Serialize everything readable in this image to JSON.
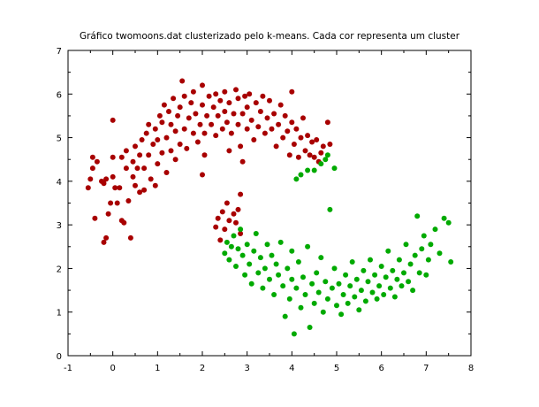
{
  "chart_data": {
    "type": "scatter",
    "title": "Gráfico twomoons.dat clusterizado pelo k-means. Cada cor representa um cluster",
    "xlabel": "",
    "ylabel": "",
    "xlim": [
      -1,
      8
    ],
    "ylim": [
      0,
      7
    ],
    "x_ticks": [
      "-1",
      "0",
      "1",
      "2",
      "3",
      "4",
      "5",
      "6",
      "7",
      "8"
    ],
    "y_ticks": [
      "0",
      "1",
      "2",
      "3",
      "4",
      "5",
      "6",
      "7"
    ],
    "grid": false,
    "series": [
      {
        "color": "#a80000",
        "points": [
          [
            -0.55,
            3.85
          ],
          [
            -0.5,
            4.05
          ],
          [
            -0.45,
            4.3
          ],
          [
            -0.45,
            4.55
          ],
          [
            -0.4,
            3.15
          ],
          [
            -0.35,
            4.45
          ],
          [
            -0.25,
            4.0
          ],
          [
            -0.2,
            3.95
          ],
          [
            -0.15,
            4.05
          ],
          [
            -0.2,
            2.6
          ],
          [
            -0.15,
            2.7
          ],
          [
            -0.1,
            3.25
          ],
          [
            -0.05,
            3.5
          ],
          [
            0.0,
            4.1
          ],
          [
            0.0,
            4.55
          ],
          [
            0.0,
            5.4
          ],
          [
            0.05,
            3.85
          ],
          [
            0.1,
            3.5
          ],
          [
            0.15,
            3.85
          ],
          [
            0.2,
            3.1
          ],
          [
            0.2,
            4.55
          ],
          [
            0.25,
            3.05
          ],
          [
            0.3,
            4.3
          ],
          [
            0.3,
            4.7
          ],
          [
            0.35,
            3.55
          ],
          [
            0.4,
            2.7
          ],
          [
            0.45,
            4.1
          ],
          [
            0.45,
            4.45
          ],
          [
            0.5,
            3.9
          ],
          [
            0.5,
            4.8
          ],
          [
            0.55,
            4.3
          ],
          [
            0.6,
            3.75
          ],
          [
            0.6,
            4.6
          ],
          [
            0.65,
            4.95
          ],
          [
            0.7,
            3.8
          ],
          [
            0.7,
            4.3
          ],
          [
            0.75,
            5.1
          ],
          [
            0.8,
            4.6
          ],
          [
            0.8,
            5.3
          ],
          [
            0.85,
            4.05
          ],
          [
            0.9,
            4.85
          ],
          [
            0.95,
            3.9
          ],
          [
            0.95,
            5.2
          ],
          [
            1.0,
            4.4
          ],
          [
            1.0,
            4.95
          ],
          [
            1.05,
            5.5
          ],
          [
            1.1,
            4.65
          ],
          [
            1.1,
            5.35
          ],
          [
            1.15,
            5.75
          ],
          [
            1.2,
            4.2
          ],
          [
            1.2,
            5.0
          ],
          [
            1.25,
            5.6
          ],
          [
            1.3,
            4.7
          ],
          [
            1.3,
            5.3
          ],
          [
            1.35,
            5.9
          ],
          [
            1.4,
            4.5
          ],
          [
            1.4,
            5.15
          ],
          [
            1.45,
            5.5
          ],
          [
            1.5,
            4.85
          ],
          [
            1.5,
            5.7
          ],
          [
            1.55,
            6.3
          ],
          [
            1.6,
            5.2
          ],
          [
            1.6,
            5.95
          ],
          [
            1.65,
            4.75
          ],
          [
            1.7,
            5.45
          ],
          [
            1.75,
            5.8
          ],
          [
            1.8,
            5.1
          ],
          [
            1.8,
            6.05
          ],
          [
            1.85,
            5.55
          ],
          [
            1.9,
            4.9
          ],
          [
            1.95,
            5.3
          ],
          [
            2.0,
            5.75
          ],
          [
            2.0,
            6.2
          ],
          [
            2.05,
            5.1
          ],
          [
            2.1,
            5.5
          ],
          [
            2.15,
            5.95
          ],
          [
            2.2,
            5.3
          ],
          [
            2.25,
            5.7
          ],
          [
            2.3,
            6.0
          ],
          [
            2.3,
            5.05
          ],
          [
            2.35,
            5.5
          ],
          [
            2.4,
            5.85
          ],
          [
            2.45,
            5.2
          ],
          [
            2.5,
            5.6
          ],
          [
            2.5,
            6.05
          ],
          [
            2.55,
            5.35
          ],
          [
            2.6,
            5.8
          ],
          [
            2.65,
            5.1
          ],
          [
            2.7,
            5.55
          ],
          [
            2.75,
            6.1
          ],
          [
            2.8,
            5.3
          ],
          [
            2.8,
            5.9
          ],
          [
            2.85,
            4.8
          ],
          [
            2.9,
            5.55
          ],
          [
            2.95,
            5.95
          ],
          [
            3.0,
            5.2
          ],
          [
            3.0,
            5.7
          ],
          [
            3.05,
            6.0
          ],
          [
            3.1,
            5.4
          ],
          [
            3.15,
            4.95
          ],
          [
            3.2,
            5.8
          ],
          [
            3.25,
            5.25
          ],
          [
            3.3,
            5.6
          ],
          [
            3.35,
            5.95
          ],
          [
            3.4,
            5.1
          ],
          [
            3.45,
            5.45
          ],
          [
            3.5,
            5.85
          ],
          [
            3.55,
            5.2
          ],
          [
            3.6,
            5.55
          ],
          [
            3.65,
            4.8
          ],
          [
            3.7,
            5.3
          ],
          [
            3.75,
            5.75
          ],
          [
            3.8,
            5.0
          ],
          [
            3.85,
            5.5
          ],
          [
            3.9,
            5.15
          ],
          [
            3.95,
            4.6
          ],
          [
            4.0,
            5.35
          ],
          [
            4.0,
            6.05
          ],
          [
            4.05,
            4.85
          ],
          [
            4.1,
            5.2
          ],
          [
            4.15,
            4.55
          ],
          [
            4.2,
            5.0
          ],
          [
            4.25,
            5.45
          ],
          [
            4.3,
            4.7
          ],
          [
            4.35,
            5.05
          ],
          [
            4.4,
            4.6
          ],
          [
            4.45,
            4.9
          ],
          [
            4.5,
            4.55
          ],
          [
            4.55,
            4.95
          ],
          [
            4.6,
            4.45
          ],
          [
            4.65,
            4.65
          ],
          [
            4.7,
            4.8
          ],
          [
            4.8,
            5.35
          ],
          [
            4.85,
            4.85
          ],
          [
            2.3,
            2.95
          ],
          [
            2.35,
            3.15
          ],
          [
            2.4,
            2.65
          ],
          [
            2.45,
            3.3
          ],
          [
            2.5,
            2.9
          ],
          [
            2.55,
            3.5
          ],
          [
            2.6,
            3.1
          ],
          [
            2.7,
            3.25
          ],
          [
            2.75,
            3.05
          ],
          [
            2.8,
            3.35
          ],
          [
            2.85,
            2.8
          ],
          [
            2.85,
            3.7
          ],
          [
            2.0,
            4.15
          ],
          [
            2.9,
            4.45
          ],
          [
            2.05,
            4.6
          ],
          [
            2.6,
            4.7
          ]
        ]
      },
      {
        "color": "#00aa00",
        "points": [
          [
            2.5,
            2.35
          ],
          [
            2.55,
            2.6
          ],
          [
            2.6,
            2.2
          ],
          [
            2.65,
            2.5
          ],
          [
            2.7,
            2.75
          ],
          [
            2.75,
            2.05
          ],
          [
            2.8,
            2.45
          ],
          [
            2.85,
            2.9
          ],
          [
            2.9,
            2.3
          ],
          [
            2.95,
            1.85
          ],
          [
            3.0,
            2.55
          ],
          [
            3.05,
            2.1
          ],
          [
            3.1,
            1.65
          ],
          [
            3.15,
            2.4
          ],
          [
            3.2,
            2.8
          ],
          [
            3.25,
            1.9
          ],
          [
            3.3,
            2.25
          ],
          [
            3.35,
            1.55
          ],
          [
            3.4,
            2.0
          ],
          [
            3.45,
            2.55
          ],
          [
            3.5,
            1.75
          ],
          [
            3.55,
            2.3
          ],
          [
            3.6,
            1.4
          ],
          [
            3.65,
            2.1
          ],
          [
            3.7,
            1.85
          ],
          [
            3.75,
            2.6
          ],
          [
            3.8,
            1.6
          ],
          [
            3.85,
            0.9
          ],
          [
            3.9,
            2.0
          ],
          [
            3.95,
            1.3
          ],
          [
            4.0,
            2.4
          ],
          [
            4.0,
            1.75
          ],
          [
            4.05,
            0.5
          ],
          [
            4.1,
            1.55
          ],
          [
            4.15,
            2.15
          ],
          [
            4.2,
            1.1
          ],
          [
            4.25,
            1.8
          ],
          [
            4.3,
            1.4
          ],
          [
            4.35,
            2.5
          ],
          [
            4.4,
            0.65
          ],
          [
            4.45,
            1.65
          ],
          [
            4.5,
            1.2
          ],
          [
            4.55,
            1.9
          ],
          [
            4.6,
            1.45
          ],
          [
            4.65,
            2.25
          ],
          [
            4.7,
            1.0
          ],
          [
            4.75,
            1.7
          ],
          [
            4.8,
            1.3
          ],
          [
            4.85,
            3.35
          ],
          [
            4.9,
            1.55
          ],
          [
            4.95,
            2.0
          ],
          [
            5.0,
            1.15
          ],
          [
            5.05,
            1.65
          ],
          [
            5.1,
            0.95
          ],
          [
            5.15,
            1.4
          ],
          [
            5.2,
            1.85
          ],
          [
            5.25,
            1.2
          ],
          [
            5.3,
            1.6
          ],
          [
            5.35,
            2.15
          ],
          [
            5.4,
            1.35
          ],
          [
            5.45,
            1.75
          ],
          [
            5.5,
            1.05
          ],
          [
            5.55,
            1.5
          ],
          [
            5.6,
            1.95
          ],
          [
            5.65,
            1.25
          ],
          [
            5.7,
            1.7
          ],
          [
            5.75,
            2.2
          ],
          [
            5.8,
            1.45
          ],
          [
            5.85,
            1.85
          ],
          [
            5.9,
            1.3
          ],
          [
            5.95,
            1.6
          ],
          [
            6.0,
            2.05
          ],
          [
            6.05,
            1.4
          ],
          [
            6.1,
            1.8
          ],
          [
            6.15,
            2.4
          ],
          [
            6.2,
            1.55
          ],
          [
            6.25,
            1.95
          ],
          [
            6.3,
            1.35
          ],
          [
            6.35,
            1.75
          ],
          [
            6.4,
            2.2
          ],
          [
            6.45,
            1.6
          ],
          [
            6.5,
            1.9
          ],
          [
            6.55,
            2.55
          ],
          [
            6.6,
            1.7
          ],
          [
            6.65,
            2.1
          ],
          [
            6.7,
            1.5
          ],
          [
            6.75,
            2.3
          ],
          [
            6.8,
            3.2
          ],
          [
            6.85,
            1.9
          ],
          [
            6.9,
            2.45
          ],
          [
            6.95,
            2.75
          ],
          [
            7.0,
            1.85
          ],
          [
            7.05,
            2.2
          ],
          [
            7.1,
            2.55
          ],
          [
            7.2,
            2.9
          ],
          [
            7.3,
            2.35
          ],
          [
            7.4,
            3.15
          ],
          [
            7.5,
            3.05
          ],
          [
            7.55,
            2.15
          ],
          [
            4.1,
            4.05
          ],
          [
            4.2,
            4.15
          ],
          [
            4.35,
            4.25
          ],
          [
            4.5,
            4.25
          ],
          [
            4.65,
            4.4
          ],
          [
            4.75,
            4.5
          ],
          [
            4.8,
            4.6
          ],
          [
            4.95,
            4.3
          ]
        ]
      }
    ]
  }
}
